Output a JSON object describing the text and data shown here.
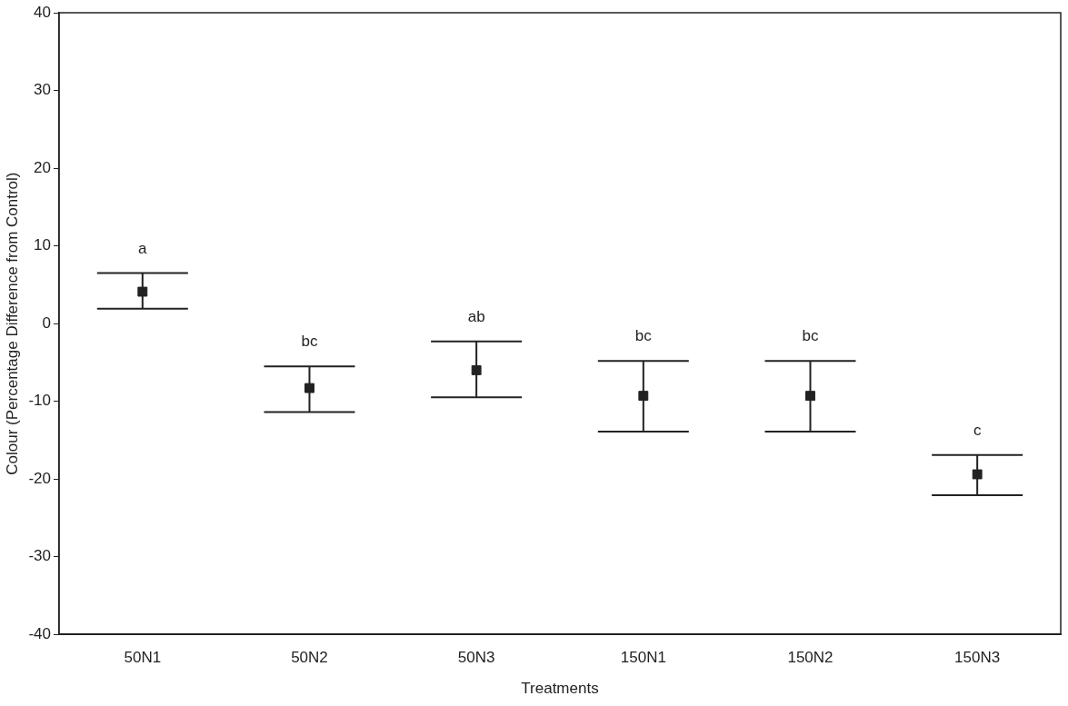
{
  "chart_data": {
    "type": "scatter",
    "xlabel": "Treatments",
    "ylabel": "Colour (Percentage Difference from Control)",
    "categories": [
      "50N1",
      "50N2",
      "50N3",
      "150N1",
      "150N2",
      "150N3"
    ],
    "values": [
      4.1,
      -8.3,
      -6.0,
      -9.3,
      -9.3,
      -19.4
    ],
    "errors": [
      [
        1.9,
        6.5
      ],
      [
        -11.4,
        -5.5
      ],
      [
        -9.5,
        -2.3
      ],
      [
        -13.9,
        -4.8
      ],
      [
        -13.9,
        -4.8
      ],
      [
        -22.1,
        -16.9
      ]
    ],
    "color": "#222222",
    "marker": "square",
    "ylim": [
      -40,
      40
    ],
    "yticks": [
      -40,
      -30,
      -20,
      -10,
      0,
      10,
      20,
      30,
      40
    ],
    "grid": false,
    "legend": false,
    "annotations": [
      "a",
      "bc",
      "ab",
      "bc",
      "bc",
      "c"
    ]
  }
}
